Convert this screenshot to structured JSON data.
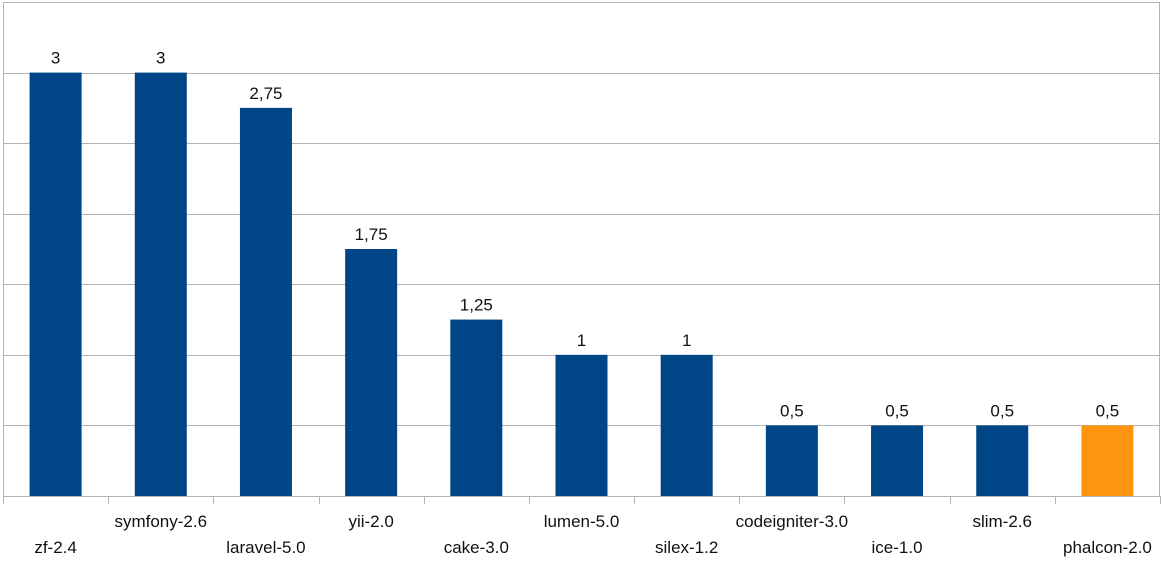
{
  "colors": {
    "bar": "#004586",
    "highlight": "#ff950e",
    "grid": "#b3b3b3",
    "axis": "#b3b3b3"
  },
  "chart_data": {
    "type": "bar",
    "categories": [
      "zf-2.4",
      "symfony-2.6",
      "laravel-5.0",
      "yii-2.0",
      "cake-3.0",
      "lumen-5.0",
      "silex-1.2",
      "codeigniter-3.0",
      "ice-1.0",
      "slim-2.6",
      "phalcon-2.0"
    ],
    "values": [
      3,
      3,
      2.75,
      1.75,
      1.25,
      1,
      1,
      0.5,
      0.5,
      0.5,
      0.5
    ],
    "value_labels": [
      "3",
      "3",
      "2,75",
      "1,75",
      "1,25",
      "1",
      "1",
      "0,5",
      "0,5",
      "0,5",
      "0,5"
    ],
    "highlight_index": 10,
    "ylim": [
      0,
      3.5
    ],
    "grid_step": 0.5,
    "grid": true,
    "title": "",
    "xlabel": "",
    "ylabel": ""
  }
}
